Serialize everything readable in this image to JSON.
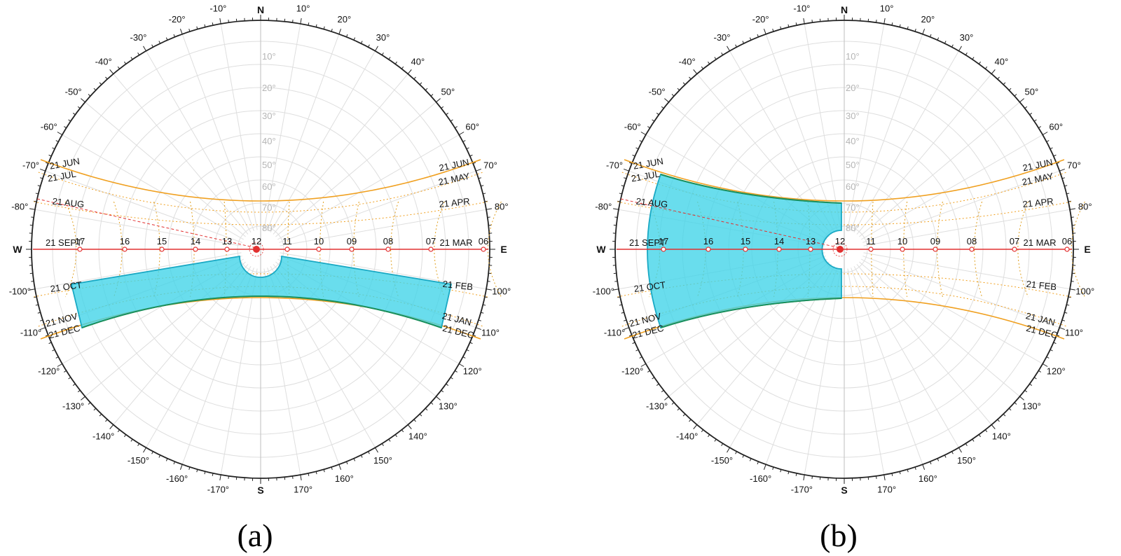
{
  "colors": {
    "shade": "#3fd3e8",
    "shade_edge": "#1aa9c4",
    "shade_dark_edge": "#1c8f5a",
    "date_line": "#f0a020",
    "analemma": "#e0a020",
    "equinox": "#e23030",
    "grid": "#dedede",
    "text": "#111111",
    "altitude_text": "#b0b0b0"
  },
  "cardinals": {
    "north": "N",
    "south": "S",
    "east": "E",
    "west": "W"
  },
  "altitude_labels": [
    "10°",
    "20°",
    "30°",
    "40°",
    "50°",
    "60°",
    "70°",
    "80°"
  ],
  "azimuth_labels": {
    "left": [
      "-10°",
      "-20°",
      "-30°",
      "-40°",
      "-50°",
      "-60°",
      "-70°",
      "-80°",
      "-100°",
      "-110°",
      "-120°",
      "-130°",
      "-140°",
      "-150°",
      "-160°",
      "-170°"
    ],
    "right": [
      "10°",
      "20°",
      "30°",
      "40°",
      "50°",
      "60°",
      "70°",
      "80°",
      "100°",
      "110°",
      "120°",
      "130°",
      "140°",
      "150°",
      "160°",
      "170°"
    ]
  },
  "hours": [
    "17",
    "16",
    "15",
    "14",
    "13",
    "12",
    "11",
    "10",
    "09",
    "08",
    "07",
    "06"
  ],
  "month_labels_left": [
    "21 JUN",
    "21 JUL",
    "21 AUG",
    "21 SEPT",
    "21 OCT",
    "21 NOV",
    "21 DEC"
  ],
  "month_labels_right": [
    "21 JUN",
    "21 MAY",
    "21 APR",
    "21 MAR",
    "21 FEB",
    "21 JAN",
    "21 DEC"
  ],
  "panels": [
    {
      "caption": "(a)",
      "shaded_region": "south band below 21 SEPT / 21 MAR line, hours 07–17"
    },
    {
      "caption": "(b)",
      "shaded_region": "west half, 21 JUN to 21 DEC, hours 12–17"
    }
  ]
}
